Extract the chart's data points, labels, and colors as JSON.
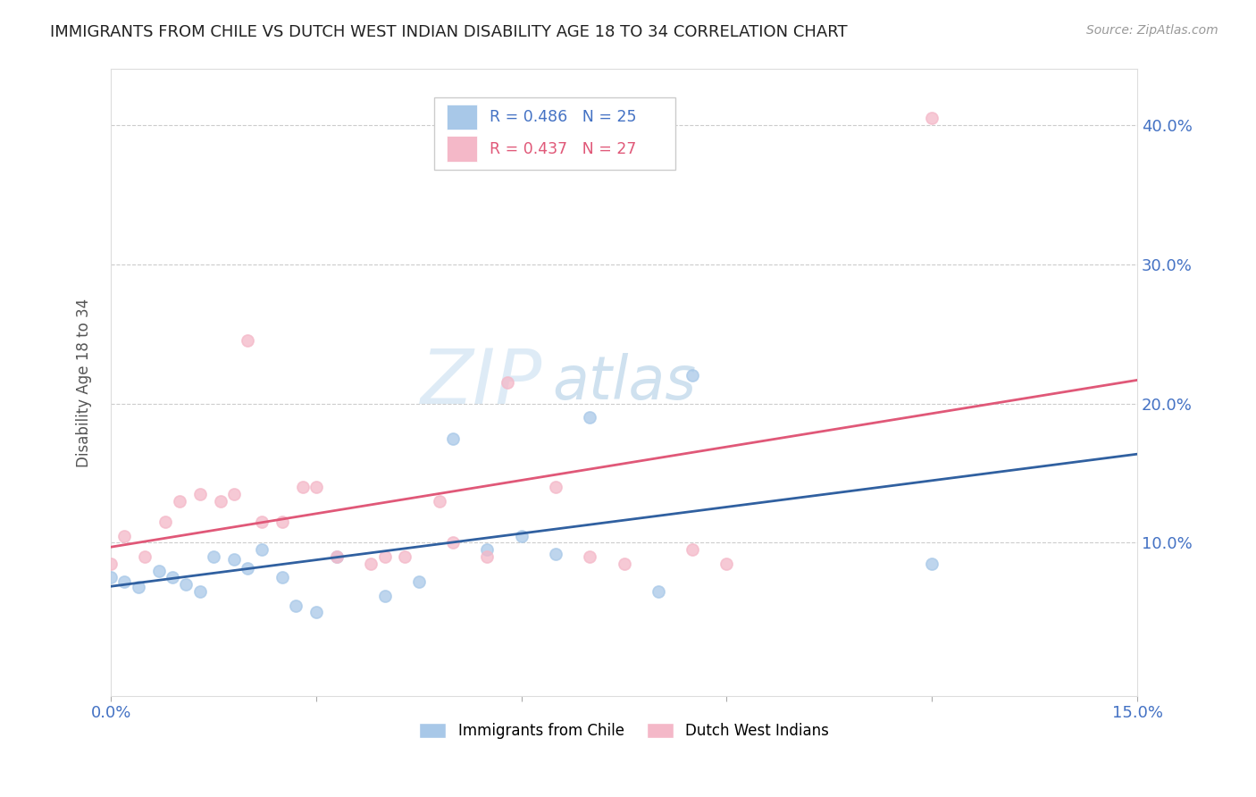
{
  "title": "IMMIGRANTS FROM CHILE VS DUTCH WEST INDIAN DISABILITY AGE 18 TO 34 CORRELATION CHART",
  "source": "Source: ZipAtlas.com",
  "ylabel": "Disability Age 18 to 34",
  "xlim": [
    0.0,
    0.15
  ],
  "ylim": [
    -0.01,
    0.44
  ],
  "yticks_right": [
    0.0,
    0.1,
    0.2,
    0.3,
    0.4
  ],
  "ytick_labels_right": [
    "",
    "10.0%",
    "20.0%",
    "30.0%",
    "40.0%"
  ],
  "chile_color": "#a8c8e8",
  "dutch_color": "#f4b8c8",
  "chile_line_color": "#3060a0",
  "dutch_line_color": "#e05878",
  "chile_R": 0.486,
  "chile_N": 25,
  "dutch_R": 0.437,
  "dutch_N": 27,
  "watermark_zip": "ZIP",
  "watermark_atlas": "atlas",
  "chile_x": [
    0.0,
    0.002,
    0.004,
    0.007,
    0.009,
    0.011,
    0.013,
    0.015,
    0.018,
    0.02,
    0.022,
    0.025,
    0.027,
    0.03,
    0.033,
    0.04,
    0.045,
    0.05,
    0.055,
    0.06,
    0.065,
    0.07,
    0.08,
    0.085,
    0.12
  ],
  "chile_y": [
    0.075,
    0.072,
    0.068,
    0.08,
    0.075,
    0.07,
    0.065,
    0.09,
    0.088,
    0.082,
    0.095,
    0.075,
    0.055,
    0.05,
    0.09,
    0.062,
    0.072,
    0.175,
    0.095,
    0.105,
    0.092,
    0.19,
    0.065,
    0.22,
    0.085
  ],
  "dutch_x": [
    0.0,
    0.002,
    0.005,
    0.008,
    0.01,
    0.013,
    0.016,
    0.018,
    0.02,
    0.022,
    0.025,
    0.028,
    0.03,
    0.033,
    0.038,
    0.04,
    0.043,
    0.048,
    0.05,
    0.055,
    0.058,
    0.065,
    0.07,
    0.075,
    0.085,
    0.09,
    0.12
  ],
  "dutch_y": [
    0.085,
    0.105,
    0.09,
    0.115,
    0.13,
    0.135,
    0.13,
    0.135,
    0.245,
    0.115,
    0.115,
    0.14,
    0.14,
    0.09,
    0.085,
    0.09,
    0.09,
    0.13,
    0.1,
    0.09,
    0.215,
    0.14,
    0.09,
    0.085,
    0.095,
    0.085,
    0.405
  ]
}
